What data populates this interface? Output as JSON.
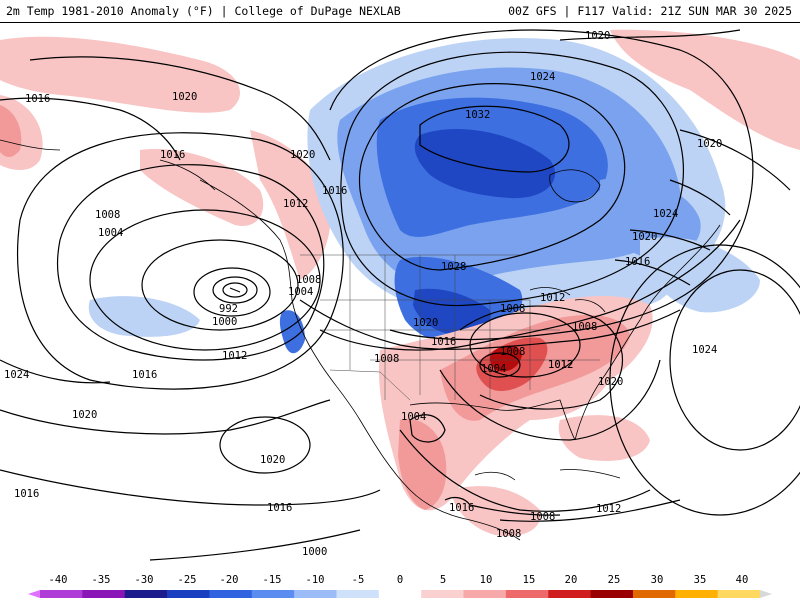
{
  "header": {
    "title": "2m Temp 1981-2010 Anomaly (°F) | College of DuPage NEXLAB",
    "run_info": "00Z GFS | F117 Valid: 21Z SUN MAR 30 2025"
  },
  "isobars": {
    "labels": [
      "1020",
      "1024",
      "1016",
      "1020",
      "1032",
      "1016",
      "1020",
      "1016",
      "1020",
      "1008",
      "1012",
      "1004",
      "1024",
      "1020",
      "1028",
      "1016",
      "1008",
      "1004",
      "992",
      "1000",
      "1008",
      "1012",
      "1020",
      "1016",
      "1008",
      "1012",
      "1008",
      "1024",
      "1012",
      "1016",
      "1004",
      "1012",
      "1008",
      "1024",
      "1020",
      "1016",
      "1020",
      "1004",
      "1020",
      "1016",
      "1016",
      "1000",
      "1008",
      "1012",
      "1008",
      "1012"
    ]
  },
  "colorbar": {
    "ticks": [
      "-40",
      "-35",
      "-30",
      "-25",
      "-20",
      "-15",
      "-10",
      "-5",
      "0",
      "5",
      "10",
      "15",
      "20",
      "25",
      "30",
      "35",
      "40"
    ],
    "colors": [
      "#e070ff",
      "#b03cd8",
      "#8a16b8",
      "#1c1c8c",
      "#1a3ec0",
      "#2f63e0",
      "#5b8cf0",
      "#9bbcf6",
      "#cfe0fb",
      "#ffffff",
      "#fbd0d0",
      "#f7a8a8",
      "#ee6a6a",
      "#d01e1e",
      "#9a0000",
      "#e06a00",
      "#ffb000",
      "#ffd860",
      "#d8d8d8"
    ]
  },
  "anomaly_colors": {
    "light_blue": "#bcd3f5",
    "mid_blue": "#7aa2ee",
    "blue": "#3d6fe0",
    "dark_blue": "#1f47c4",
    "deep_blue": "#183494",
    "light_red": "#f8c4c4",
    "pink": "#f29a9a",
    "red": "#e05050",
    "dark_red": "#b40c0c"
  }
}
